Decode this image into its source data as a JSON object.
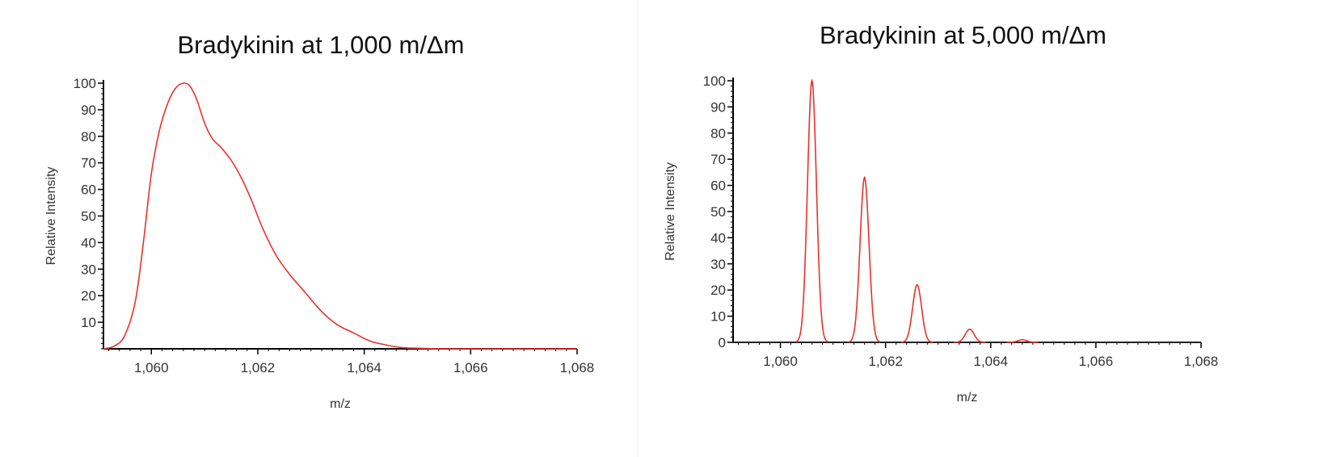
{
  "colors": {
    "line": "#e8322c",
    "axis": "#000000",
    "baseline": "#222222"
  },
  "chart_data": [
    {
      "type": "line",
      "title": "Bradykinin at 1,000 m/Δm",
      "xlabel": "m/z",
      "ylabel": "Relative Intensity",
      "xlim": [
        1059.1,
        1068
      ],
      "ylim": [
        0,
        100
      ],
      "xticks": [
        1060,
        1062,
        1064,
        1066,
        1068
      ],
      "xtick_labels": [
        "1,060",
        "1,062",
        "1,064",
        "1,066",
        "1,068"
      ],
      "yticks": [
        10,
        20,
        30,
        40,
        50,
        60,
        70,
        80,
        90,
        100
      ],
      "ytick_labels": [
        "10",
        "20",
        "30",
        "40",
        "50",
        "60",
        "70",
        "80",
        "90",
        "100"
      ],
      "grid": false,
      "series": [
        {
          "x": [
            1059.1,
            1059.3,
            1059.5,
            1059.7,
            1059.85,
            1060.0,
            1060.15,
            1060.3,
            1060.45,
            1060.6,
            1060.72,
            1060.85,
            1061.0,
            1061.15,
            1061.3,
            1061.5,
            1061.7,
            1061.9,
            1062.1,
            1062.35,
            1062.6,
            1062.9,
            1063.2,
            1063.5,
            1063.8,
            1064.1,
            1064.4,
            1064.7,
            1065.0,
            1065.5,
            1066.0,
            1067.0,
            1068.0
          ],
          "y": [
            0,
            1,
            5,
            18,
            40,
            66,
            82,
            92,
            98,
            100,
            99,
            94,
            85,
            79,
            76,
            71,
            64,
            55,
            45,
            35,
            28,
            21,
            14,
            9,
            6,
            3,
            1.5,
            0.5,
            0.2,
            0,
            0,
            0,
            0
          ]
        }
      ]
    },
    {
      "type": "line",
      "title": "Bradykinin at 5,000 m/Δm",
      "xlabel": "m/z",
      "ylabel": "Relative Intensity",
      "xlim": [
        1059.1,
        1068
      ],
      "ylim": [
        0,
        100
      ],
      "xticks": [
        1060,
        1062,
        1064,
        1066,
        1068
      ],
      "xtick_labels": [
        "1,060",
        "1,062",
        "1,064",
        "1,066",
        "1,068"
      ],
      "yticks": [
        0,
        10,
        20,
        30,
        40,
        50,
        60,
        70,
        80,
        90,
        100
      ],
      "ytick_labels": [
        "0",
        "10",
        "20",
        "30",
        "40",
        "50",
        "60",
        "70",
        "80",
        "90",
        "100"
      ],
      "grid": false,
      "peaks": [
        {
          "x": 1060.6,
          "y": 100
        },
        {
          "x": 1061.6,
          "y": 63
        },
        {
          "x": 1062.6,
          "y": 22
        },
        {
          "x": 1063.6,
          "y": 5
        },
        {
          "x": 1064.6,
          "y": 1
        }
      ]
    }
  ]
}
